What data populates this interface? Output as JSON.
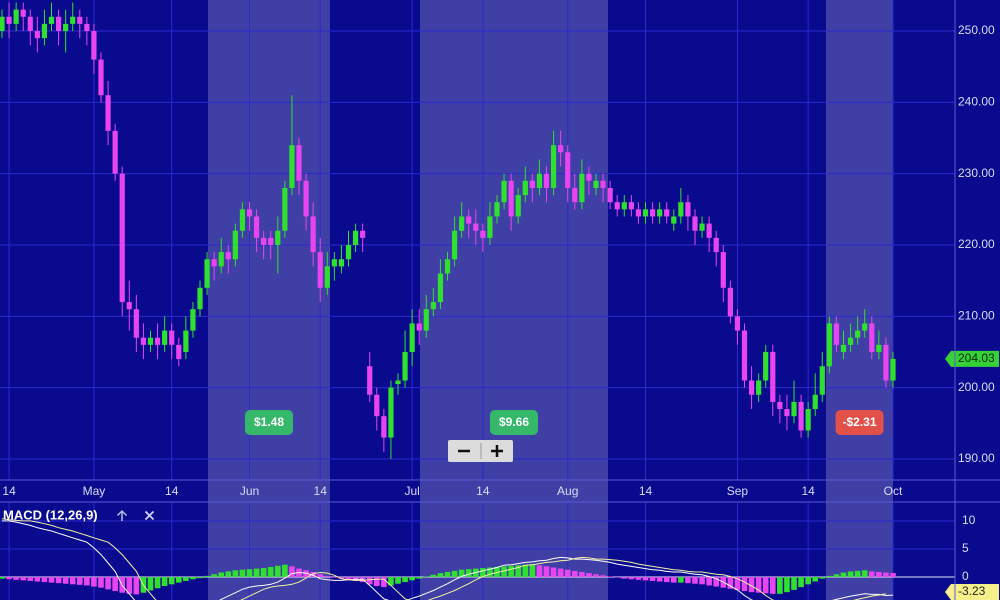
{
  "chart_data": [
    {
      "type": "candlestick",
      "categories": [
        null,
        "14",
        null,
        null,
        null,
        null,
        null,
        null,
        null,
        null,
        null,
        null,
        null,
        "May",
        null,
        null,
        null,
        null,
        null,
        null,
        null,
        null,
        null,
        null,
        "14",
        null,
        null,
        null,
        null,
        null,
        null,
        null,
        null,
        null,
        null,
        "Jun",
        null,
        null,
        null,
        null,
        null,
        null,
        null,
        null,
        null,
        "14",
        null,
        null,
        null,
        null,
        null,
        null,
        null,
        null,
        null,
        null,
        null,
        null,
        "Jul",
        null,
        null,
        null,
        null,
        null,
        null,
        null,
        null,
        null,
        "14",
        null,
        null,
        null,
        null,
        null,
        null,
        null,
        null,
        null,
        null,
        null,
        "Aug",
        null,
        null,
        null,
        null,
        null,
        null,
        null,
        null,
        null,
        null,
        "14",
        null,
        null,
        null,
        null,
        null,
        null,
        null,
        null,
        null,
        null,
        null,
        null,
        "Sep",
        null,
        null,
        null,
        null,
        null,
        null,
        null,
        null,
        null,
        "14",
        null,
        null,
        null,
        null,
        null,
        null,
        null,
        null,
        null,
        null,
        null,
        "Oct"
      ],
      "ohlc": {
        "open": [
          250,
          252,
          251,
          253,
          252,
          250,
          249,
          251,
          252,
          250,
          251,
          252,
          251,
          250,
          246,
          241,
          236,
          230,
          212,
          211,
          207,
          206,
          207,
          206,
          208,
          206,
          205,
          208,
          211,
          214,
          218,
          217,
          219,
          218,
          222,
          225,
          224,
          221,
          221,
          220,
          222,
          228,
          234,
          229,
          224,
          219,
          214,
          217,
          217,
          218,
          220,
          222,
          203,
          199,
          196,
          193,
          200.5,
          201,
          205,
          209,
          208,
          211,
          212,
          216,
          218,
          222,
          224,
          223,
          222,
          221,
          224,
          226,
          229,
          224,
          227,
          229,
          228,
          230,
          228,
          234,
          233,
          228,
          226,
          230,
          228,
          229,
          228,
          226,
          225,
          226,
          225,
          224,
          225,
          224,
          225,
          223,
          224,
          226,
          224,
          222,
          223,
          221,
          219,
          214,
          210,
          208,
          201,
          199,
          201,
          205,
          198,
          197,
          196,
          198,
          194,
          197,
          199,
          203,
          209,
          205,
          206,
          207,
          208,
          209,
          205,
          206,
          201
        ],
        "high": [
          253,
          254,
          254,
          254,
          253,
          252,
          253,
          254,
          253,
          253,
          254,
          253,
          252,
          251,
          247,
          243,
          237,
          231,
          215,
          213,
          209,
          208,
          209,
          210,
          209,
          207,
          210,
          212,
          215,
          219,
          219,
          221,
          220,
          223,
          226,
          226,
          225,
          222,
          222,
          224,
          229,
          241,
          235,
          230,
          226,
          221,
          219,
          219,
          220,
          222,
          223,
          223,
          205,
          200,
          197,
          201,
          202,
          208,
          211,
          211,
          213,
          214,
          218,
          219,
          224,
          226,
          225,
          225,
          223,
          226,
          227,
          230,
          230,
          228,
          231,
          230,
          232,
          231,
          236,
          236,
          234,
          230,
          232,
          231,
          230,
          230,
          229,
          227,
          227,
          227,
          226,
          226,
          226,
          226,
          226,
          225,
          228,
          227,
          225,
          224,
          224,
          222,
          220,
          215,
          211,
          209,
          203,
          202,
          206,
          206,
          199,
          199,
          201,
          199,
          198,
          202,
          205,
          210,
          210,
          208,
          209,
          210,
          211,
          210,
          208,
          207,
          205
        ],
        "low": [
          249,
          249,
          250,
          250,
          248,
          247,
          248,
          250,
          248,
          247,
          250,
          249,
          248,
          244,
          240,
          234,
          229,
          210,
          208,
          205,
          204,
          205,
          204,
          205,
          204,
          203,
          204,
          207,
          210,
          213,
          215,
          216,
          216,
          217,
          221,
          222,
          219,
          218,
          218,
          216,
          221,
          227,
          227,
          222,
          217,
          212,
          213,
          215,
          216,
          217,
          219,
          219,
          198,
          194,
          191,
          190,
          199,
          200,
          203,
          206,
          207,
          210,
          211,
          215,
          217,
          221,
          221,
          220,
          219,
          220,
          223,
          225,
          222,
          223,
          226,
          226,
          227,
          226,
          227,
          231,
          226,
          225,
          225,
          227,
          227,
          226,
          225,
          224,
          224,
          224,
          223,
          223,
          223,
          223,
          223,
          222,
          223,
          222,
          220,
          221,
          219,
          217,
          212,
          209,
          206,
          200,
          197,
          198,
          200,
          196,
          195,
          194,
          195,
          193,
          193,
          196,
          198,
          202,
          205,
          204,
          205,
          206,
          207,
          204,
          204,
          200,
          200
        ],
        "close": [
          252,
          251,
          253,
          252,
          250,
          249,
          251,
          252,
          250,
          251,
          252,
          251,
          250,
          246,
          241,
          236,
          230,
          212,
          211,
          207,
          206,
          207,
          206,
          208,
          206,
          204,
          208,
          211,
          214,
          218,
          217,
          219,
          218,
          222,
          225,
          224,
          221,
          220,
          220,
          222,
          228,
          234,
          229,
          224,
          219,
          214,
          217,
          218,
          218,
          220,
          222,
          221,
          199,
          196,
          193,
          200,
          201,
          205,
          209,
          208,
          211,
          212,
          216,
          218,
          222,
          224,
          223,
          222,
          221,
          224,
          226,
          229,
          224,
          227,
          229,
          228,
          230,
          228,
          234,
          233,
          228,
          226,
          230,
          229,
          229,
          228,
          226,
          225,
          226,
          225,
          224,
          225,
          224,
          225,
          224,
          224,
          226,
          224,
          222,
          223,
          221,
          219,
          214,
          210,
          208,
          201,
          199,
          201,
          205,
          198,
          197,
          196,
          198,
          194,
          197,
          199,
          203,
          209,
          206,
          206,
          207,
          208,
          209,
          205,
          206,
          201,
          204.03
        ]
      },
      "up_color": "#2fe02f",
      "down_color": "#e844f0",
      "ylim": [
        187.05,
        254.35
      ],
      "yticks": [
        {
          "value": 190,
          "label": "190.00"
        },
        {
          "value": 200,
          "label": "200.00"
        },
        {
          "value": 210,
          "label": "210.00"
        },
        {
          "value": 220,
          "label": "220.00"
        },
        {
          "value": 230,
          "label": "230.00"
        },
        {
          "value": 240,
          "label": "240.00"
        },
        {
          "value": 250,
          "label": "250.00"
        }
      ],
      "grid": true,
      "annotations": [
        {
          "text": "$1.48",
          "color": "#36b86a"
        },
        {
          "text": "$9.66",
          "color": "#36b86a"
        },
        {
          "text": "-$2.31",
          "color": "#e2504a"
        }
      ]
    },
    {
      "type": "macd",
      "title": "MACD (12,26,9)",
      "histogram": [
        -0.3,
        -0.4,
        -0.5,
        -0.6,
        -0.7,
        -0.8,
        -0.9,
        -1.0,
        -1.1,
        -1.2,
        -1.3,
        -1.4,
        -1.5,
        -1.7,
        -1.9,
        -2.2,
        -2.5,
        -2.8,
        -3.0,
        -3.1,
        -2.8,
        -2.4,
        -2.0,
        -1.6,
        -1.3,
        -1.0,
        -0.7,
        -0.4,
        -0.2,
        0.2,
        0.5,
        0.8,
        1.0,
        1.2,
        1.3,
        1.4,
        1.5,
        1.6,
        1.8,
        2.0,
        2.2,
        1.9,
        1.5,
        1.2,
        0.9,
        0.5,
        0.2,
        -0.1,
        -0.3,
        -0.5,
        -0.7,
        -0.9,
        -1.3,
        -1.6,
        -1.8,
        -1.5,
        -1.2,
        -0.9,
        -0.6,
        -0.3,
        0.1,
        0.4,
        0.7,
        0.9,
        1.1,
        1.3,
        1.4,
        1.5,
        1.6,
        1.7,
        1.8,
        1.9,
        2.0,
        2.1,
        2.2,
        2.3,
        2.1,
        1.9,
        1.7,
        1.5,
        1.3,
        1.1,
        0.9,
        0.7,
        0.5,
        0.3,
        0.1,
        -0.1,
        -0.3,
        -0.4,
        -0.5,
        -0.6,
        -0.7,
        -0.8,
        -0.9,
        -1.0,
        -1.0,
        -1.1,
        -1.2,
        -1.3,
        -1.5,
        -1.7,
        -1.9,
        -2.1,
        -2.3,
        -2.5,
        -2.7,
        -2.8,
        -2.9,
        -3.0,
        -3.0,
        -2.7,
        -2.3,
        -1.8,
        -1.3,
        -0.8,
        -0.3,
        0.2,
        0.5,
        0.8,
        1.0,
        1.1,
        1.2,
        1.0,
        0.9,
        0.8,
        0.7
      ],
      "macd_line": {
        "color": "#ffffff",
        "values": [
          10,
          10,
          9.8,
          9.5,
          9.2,
          8.8,
          8.5,
          8.2,
          7.8,
          7.4,
          7,
          6.6,
          6.2,
          5.2,
          4,
          2.5,
          1,
          -1.5,
          -3,
          -4.5,
          -5.5,
          -6.2,
          -6.8,
          -7,
          -7.2,
          -7.3,
          -7,
          -6.5,
          -6,
          -5.3,
          -4.6,
          -4,
          -3.4,
          -2.8,
          -2.2,
          -1.8,
          -1.6,
          -1.5,
          -1.3,
          -0.9,
          -0.2,
          0.6,
          0.8,
          0.7,
          0.3,
          -0.3,
          -0.5,
          -0.6,
          -0.6,
          -0.5,
          -0.4,
          -0.4,
          -1.5,
          -2.7,
          -3.9,
          -4.3,
          -4.5,
          -4.3,
          -3.8,
          -3.4,
          -2.9,
          -2.4,
          -1.8,
          -1.2,
          -0.5,
          0.1,
          0.5,
          0.8,
          1.1,
          1.4,
          1.7,
          2.1,
          2.2,
          2.4,
          2.6,
          2.7,
          2.9,
          3,
          3.3,
          3.5,
          3.4,
          3.2,
          3.2,
          3.1,
          3,
          2.8,
          2.6,
          2.3,
          2.1,
          1.9,
          1.7,
          1.5,
          1.3,
          1.2,
          1,
          0.9,
          0.9,
          0.7,
          0.5,
          0.4,
          0.1,
          -0.3,
          -0.9,
          -1.6,
          -2.3,
          -3.3,
          -4.1,
          -4.5,
          -4.5,
          -4.9,
          -5.2,
          -5.4,
          -5.4,
          -5.7,
          -5.7,
          -5.5,
          -5,
          -4.3,
          -4,
          -3.7,
          -3.4,
          -3.2,
          -3,
          -3.1,
          -3.1,
          -3.3,
          -3.23
        ]
      },
      "signal_line": {
        "color": "#f2f2a0",
        "values": [
          10.4,
          10.2,
          10.1,
          10,
          10,
          9.8,
          9.5,
          9.2,
          8.8,
          8.5,
          8.2,
          7.8,
          7.4,
          7,
          6.6,
          6.2,
          5.2,
          4,
          2.5,
          1,
          -1.5,
          -3,
          -4.5,
          -5.5,
          -6.2,
          -6.8,
          -7,
          -7.2,
          -7.3,
          -7,
          -6.5,
          -6,
          -5.3,
          -4.6,
          -4,
          -3.4,
          -2.8,
          -2.2,
          -1.8,
          -1.6,
          -1.5,
          -1.3,
          -0.9,
          -0.2,
          0.6,
          0.8,
          0.7,
          0.3,
          -0.3,
          -0.5,
          -0.6,
          -0.6,
          -0.5,
          -0.4,
          -0.4,
          -1.5,
          -2.7,
          -3.9,
          -4.3,
          -4.5,
          -4.3,
          -3.8,
          -3.4,
          -2.9,
          -2.4,
          -1.8,
          -1.2,
          -0.5,
          0.1,
          0.5,
          0.8,
          1.1,
          1.4,
          1.7,
          2.1,
          2.2,
          2.4,
          2.6,
          2.7,
          2.9,
          3,
          3.3,
          3.5,
          3.4,
          3.2,
          3.2,
          3.1,
          3,
          2.8,
          2.6,
          2.3,
          2.1,
          1.9,
          1.7,
          1.5,
          1.3,
          1.2,
          1,
          0.9,
          0.9,
          0.7,
          0.5,
          0.4,
          0.1,
          -0.3,
          -0.9,
          -1.6,
          -2.3,
          -3.3,
          -4.1,
          -4.5,
          -4.5,
          -4.9,
          -5.2,
          -5.4,
          -5.4,
          -5.7,
          -5.7,
          -5.5,
          -5,
          -4.3,
          -4,
          -3.7,
          -3.4,
          -3.2,
          -3
        ]
      },
      "up_color": "#2fe02f",
      "down_color": "#e844f0",
      "ylim": [
        -4.1,
        13.2
      ],
      "yticks": [
        0,
        5,
        10
      ]
    }
  ]
}
